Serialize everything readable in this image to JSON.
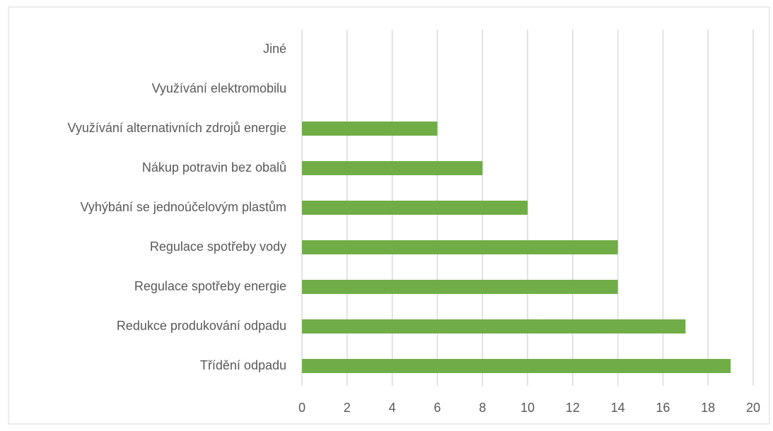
{
  "chart_data": {
    "type": "bar",
    "orientation": "horizontal",
    "categories": [
      "Jiné",
      "Využívání elektromobilu",
      "Využívání alternativních zdrojů energie",
      "Nákup potravin bez obalů",
      "Vyhýbání se jednoúčelovým plastům",
      "Regulace spotřeby vody",
      "Regulace spotřeby energie",
      "Redukce produkování odpadu",
      "Třídění odpadu"
    ],
    "values": [
      0,
      0,
      6,
      8,
      10,
      14,
      14,
      17,
      19
    ],
    "color": "#70ad47",
    "xlim": [
      0,
      20
    ],
    "xticks": [
      0,
      2,
      4,
      6,
      8,
      10,
      12,
      14,
      16,
      18,
      20
    ],
    "grid": true
  }
}
